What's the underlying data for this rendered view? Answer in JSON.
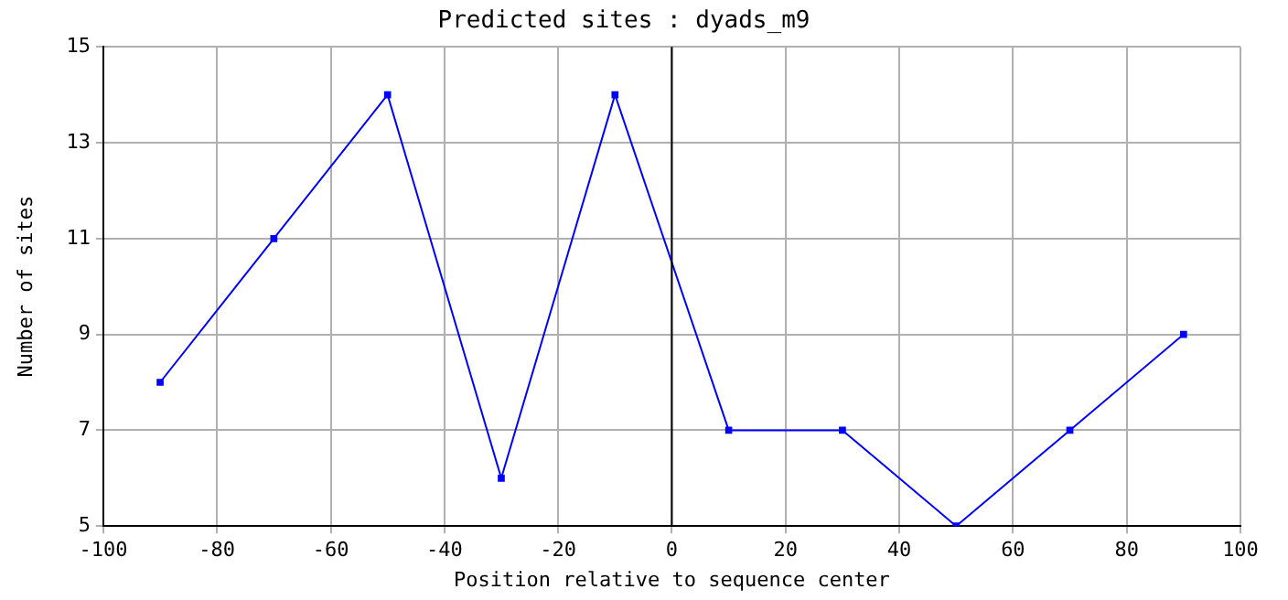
{
  "chart_data": {
    "type": "line",
    "title": "Predicted sites : dyads_m9",
    "xlabel": "Position relative to sequence center",
    "ylabel": "Number of sites",
    "x": [
      -90,
      -70,
      -50,
      -30,
      -10,
      10,
      30,
      50,
      70,
      90
    ],
    "series": [
      {
        "color": "#0000ff",
        "values": [
          8,
          11,
          14,
          6,
          14,
          7,
          7,
          5,
          7,
          9
        ]
      }
    ],
    "xlim": [
      -100,
      100
    ],
    "xticks": [
      -100,
      -80,
      -60,
      -40,
      -20,
      0,
      20,
      40,
      60,
      80,
      100
    ],
    "ylim": [
      5,
      15
    ],
    "yticks": [
      5,
      7,
      9,
      11,
      13,
      15
    ],
    "ref_lines": [
      {
        "axis": "x",
        "value": 0,
        "color": "#000000"
      }
    ],
    "grid": true,
    "legend": false,
    "marker": "square",
    "line_style": "solid"
  }
}
